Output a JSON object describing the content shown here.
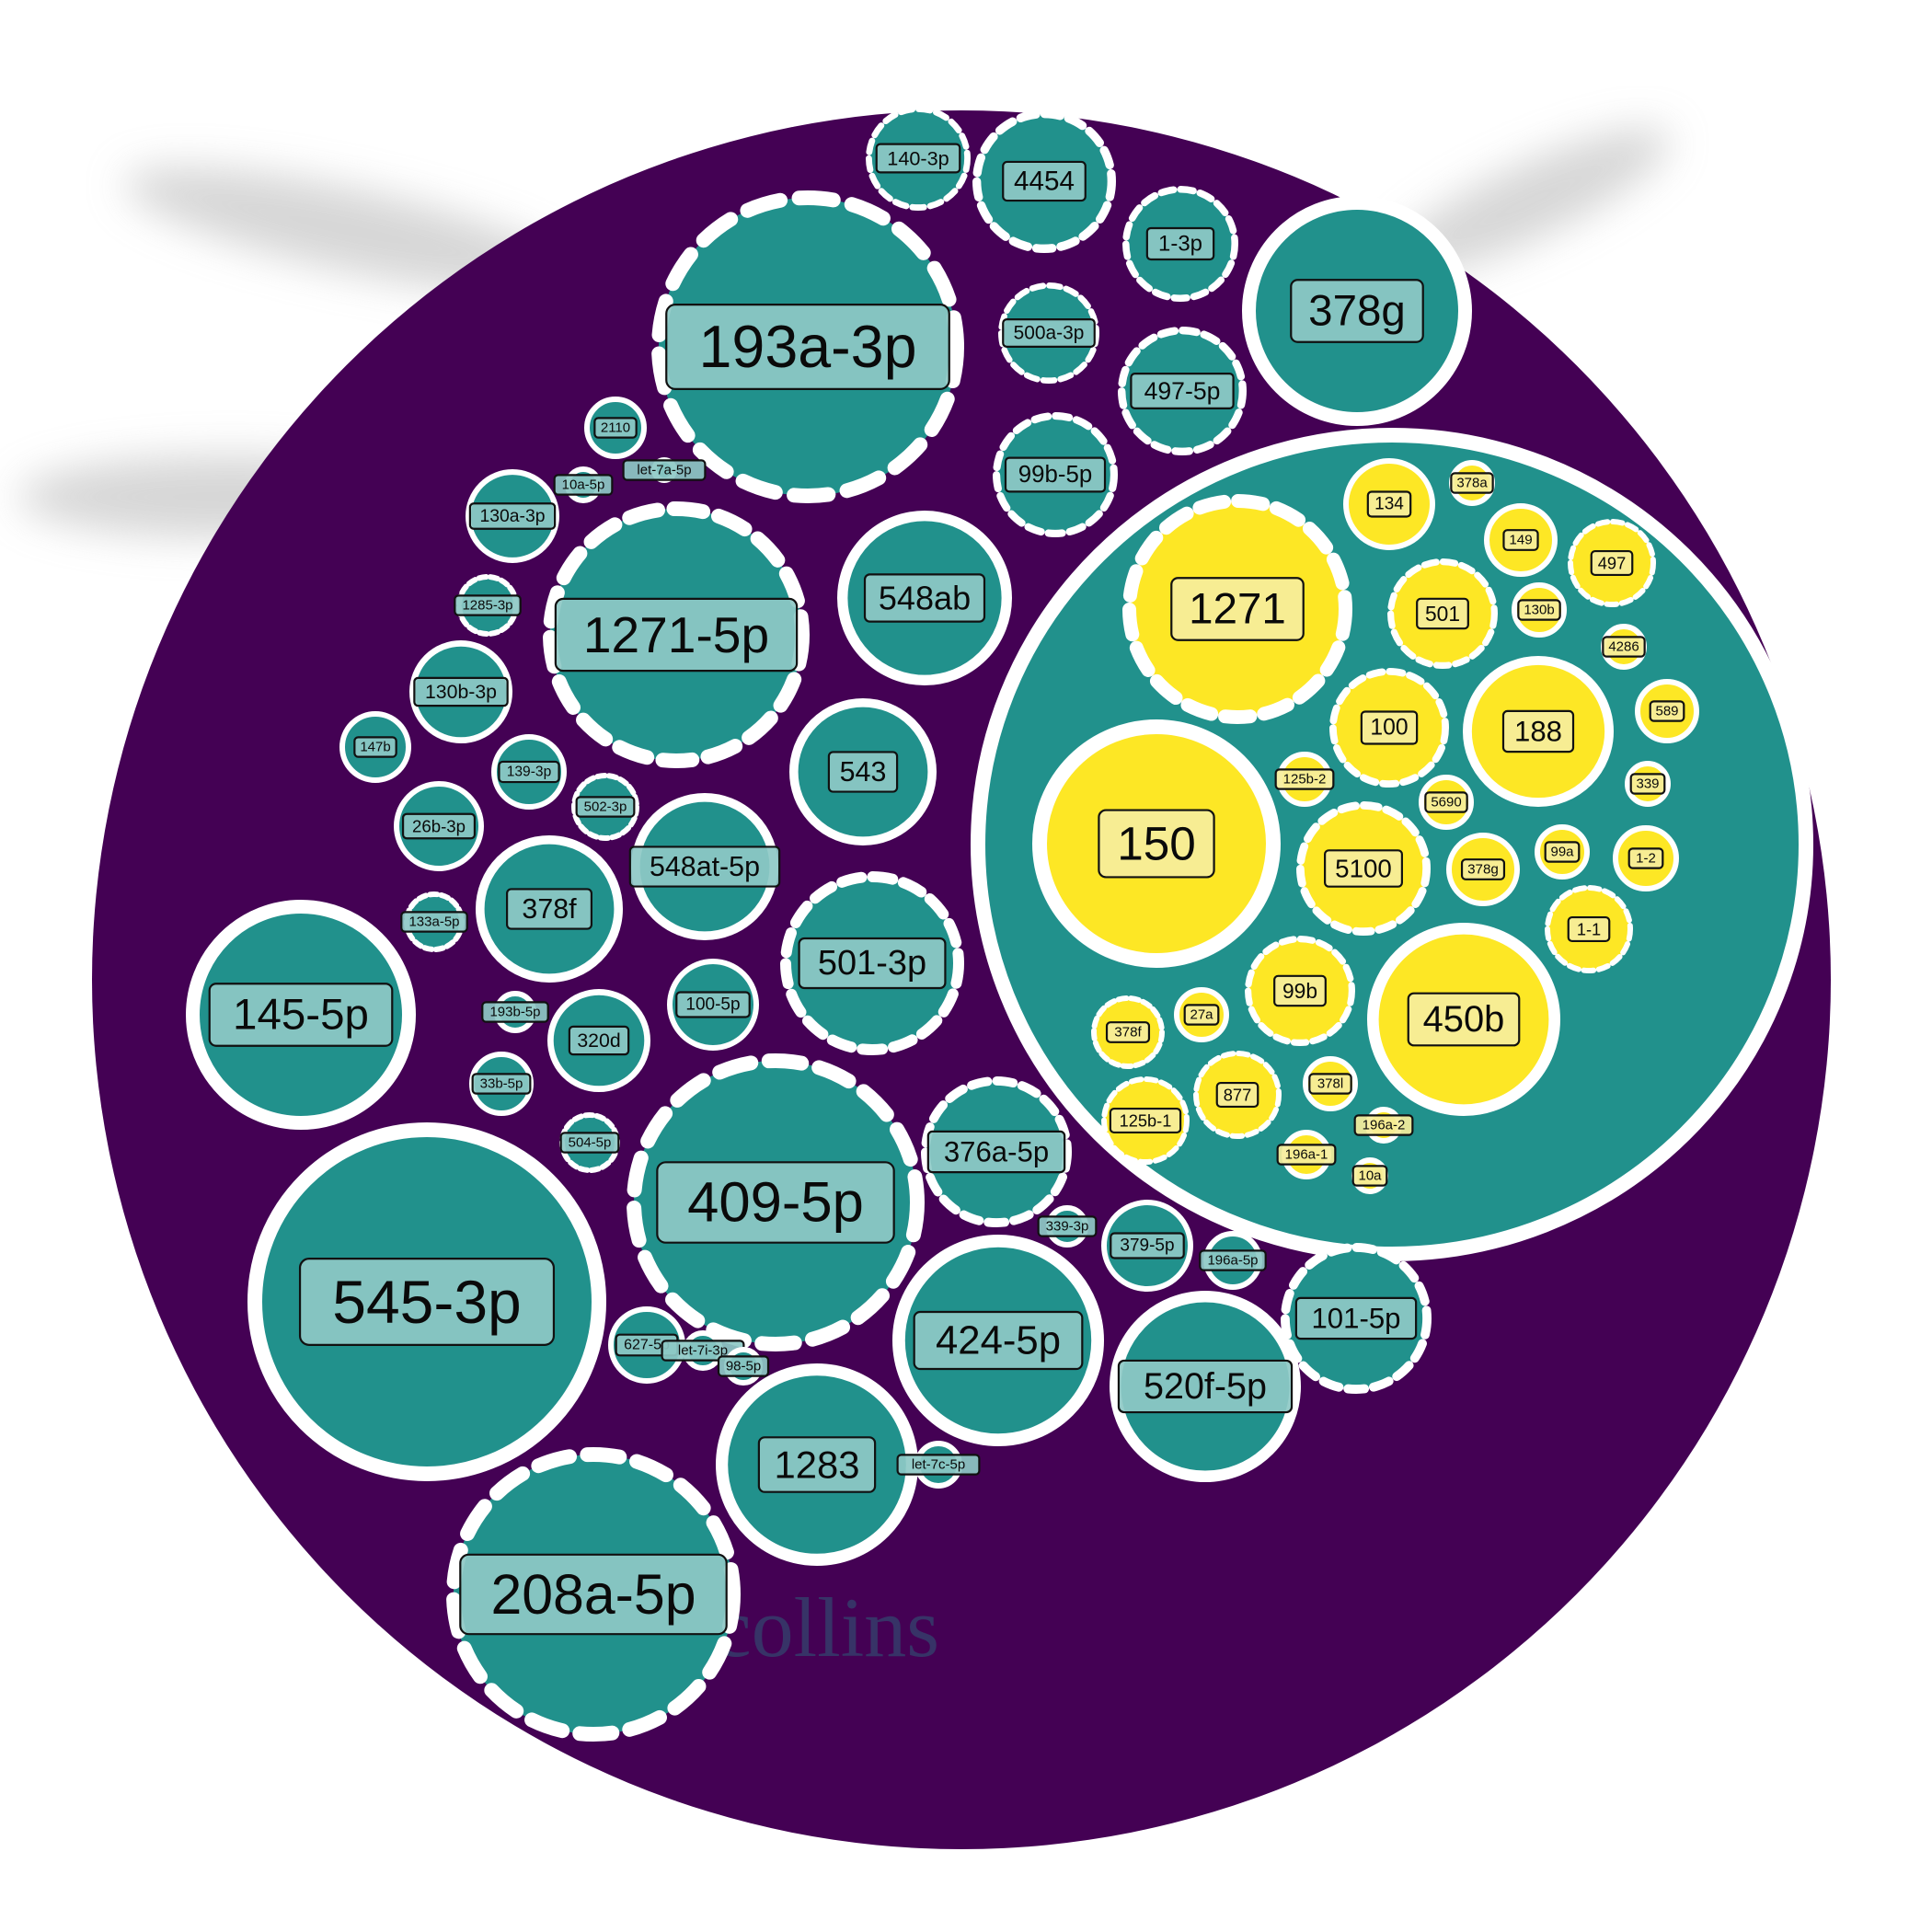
{
  "colors": {
    "outer": "#440154",
    "teal": "#21918c",
    "teal_label_bg": "#8ec9c6",
    "yellow": "#fde725",
    "yellow_label_bg": "#f6ee9c",
    "ring": "#ffffff",
    "shadow": "#bdbdbd"
  },
  "watermark": "FCA collins",
  "groups": [
    {
      "key": "teal",
      "nodes": [
        {
          "id": "t1",
          "label": "193a-3p",
          "dashed": true
        },
        {
          "id": "t2",
          "label": "140-3p",
          "dashed": true
        },
        {
          "id": "t3",
          "label": "4454",
          "dashed": true
        },
        {
          "id": "t4",
          "label": "1-3p",
          "dashed": true
        },
        {
          "id": "t5",
          "label": "378g",
          "dashed": false
        },
        {
          "id": "t6",
          "label": "500a-3p",
          "dashed": true
        },
        {
          "id": "t7",
          "label": "497-5p",
          "dashed": true
        },
        {
          "id": "t8",
          "label": "99b-5p",
          "dashed": true
        },
        {
          "id": "t9",
          "label": "2110",
          "dashed": false
        },
        {
          "id": "t10",
          "label": "let-7a-5p",
          "dashed": false
        },
        {
          "id": "t11",
          "label": "10a-5p",
          "dashed": false
        },
        {
          "id": "t12",
          "label": "130a-3p",
          "dashed": false
        },
        {
          "id": "t13",
          "label": "1271-5p",
          "dashed": true
        },
        {
          "id": "t14",
          "label": "548ab",
          "dashed": false
        },
        {
          "id": "t15",
          "label": "1285-3p",
          "dashed": true
        },
        {
          "id": "t16",
          "label": "130b-3p",
          "dashed": false
        },
        {
          "id": "t17",
          "label": "147b",
          "dashed": false
        },
        {
          "id": "t18",
          "label": "139-3p",
          "dashed": false
        },
        {
          "id": "t19",
          "label": "543",
          "dashed": false
        },
        {
          "id": "t20",
          "label": "502-3p",
          "dashed": true
        },
        {
          "id": "t21",
          "label": "26b-3p",
          "dashed": false
        },
        {
          "id": "t22",
          "label": "548at-5p",
          "dashed": false
        },
        {
          "id": "t23",
          "label": "133a-5p",
          "dashed": true
        },
        {
          "id": "t24",
          "label": "378f",
          "dashed": false
        },
        {
          "id": "t25",
          "label": "501-3p",
          "dashed": true
        },
        {
          "id": "t26",
          "label": "145-5p",
          "dashed": false
        },
        {
          "id": "t27",
          "label": "193b-5p",
          "dashed": false
        },
        {
          "id": "t28",
          "label": "100-5p",
          "dashed": false
        },
        {
          "id": "t29",
          "label": "320d",
          "dashed": false
        },
        {
          "id": "t30",
          "label": "33b-5p",
          "dashed": false
        },
        {
          "id": "t31",
          "label": "504-5p",
          "dashed": true
        },
        {
          "id": "t32",
          "label": "409-5p",
          "dashed": true
        },
        {
          "id": "t33",
          "label": "376a-5p",
          "dashed": true
        },
        {
          "id": "t34",
          "label": "545-3p",
          "dashed": false
        },
        {
          "id": "t35",
          "label": "339-3p",
          "dashed": false
        },
        {
          "id": "t36",
          "label": "379-5p",
          "dashed": false
        },
        {
          "id": "t37",
          "label": "196a-5p",
          "dashed": false
        },
        {
          "id": "t38",
          "label": "101-5p",
          "dashed": true
        },
        {
          "id": "t39",
          "label": "627-5p",
          "dashed": false
        },
        {
          "id": "t40",
          "label": "let-7i-3p",
          "dashed": false
        },
        {
          "id": "t41",
          "label": "98-5p",
          "dashed": false
        },
        {
          "id": "t42",
          "label": "424-5p",
          "dashed": false
        },
        {
          "id": "t43",
          "label": "520f-5p",
          "dashed": false
        },
        {
          "id": "t44",
          "label": "1283",
          "dashed": false
        },
        {
          "id": "t45",
          "label": "let-7c-5p",
          "dashed": false
        },
        {
          "id": "t46",
          "label": "208a-5p",
          "dashed": true
        }
      ]
    },
    {
      "key": "yellow",
      "nodes": [
        {
          "id": "y1",
          "label": "1271",
          "dashed": true
        },
        {
          "id": "y2",
          "label": "134",
          "dashed": false
        },
        {
          "id": "y3",
          "label": "378a",
          "dashed": false
        },
        {
          "id": "y4",
          "label": "149",
          "dashed": false
        },
        {
          "id": "y5",
          "label": "497",
          "dashed": true
        },
        {
          "id": "y6",
          "label": "501",
          "dashed": true
        },
        {
          "id": "y7",
          "label": "130b",
          "dashed": false
        },
        {
          "id": "y8",
          "label": "4286",
          "dashed": false
        },
        {
          "id": "y9",
          "label": "100",
          "dashed": true
        },
        {
          "id": "y10",
          "label": "188",
          "dashed": false
        },
        {
          "id": "y11",
          "label": "589",
          "dashed": false
        },
        {
          "id": "y12",
          "label": "125b-2",
          "dashed": false
        },
        {
          "id": "y13",
          "label": "339",
          "dashed": false
        },
        {
          "id": "y14",
          "label": "5690",
          "dashed": false
        },
        {
          "id": "y15",
          "label": "150",
          "dashed": false
        },
        {
          "id": "y16",
          "label": "5100",
          "dashed": true
        },
        {
          "id": "y17",
          "label": "378g",
          "dashed": false
        },
        {
          "id": "y18",
          "label": "99a",
          "dashed": false
        },
        {
          "id": "y19",
          "label": "1-2",
          "dashed": false
        },
        {
          "id": "y20",
          "label": "1-1",
          "dashed": true
        },
        {
          "id": "y21",
          "label": "99b",
          "dashed": true
        },
        {
          "id": "y22",
          "label": "450b",
          "dashed": false
        },
        {
          "id": "y23",
          "label": "378f",
          "dashed": true
        },
        {
          "id": "y24",
          "label": "27a",
          "dashed": false
        },
        {
          "id": "y25",
          "label": "877",
          "dashed": true
        },
        {
          "id": "y26",
          "label": "378l",
          "dashed": false
        },
        {
          "id": "y27",
          "label": "125b-1",
          "dashed": true
        },
        {
          "id": "y28",
          "label": "196a-2",
          "dashed": false
        },
        {
          "id": "y29",
          "label": "196a-1",
          "dashed": false
        },
        {
          "id": "y30",
          "label": "10a",
          "dashed": false
        }
      ]
    }
  ]
}
